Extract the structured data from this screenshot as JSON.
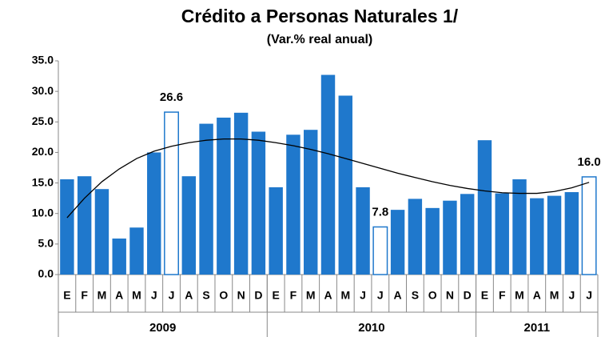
{
  "chart_data": {
    "type": "bar",
    "title": "Crédito a Personas Naturales 1/",
    "subtitle": "(Var.% real anual)",
    "groups": [
      {
        "name": "2009",
        "categories": [
          "E",
          "F",
          "M",
          "A",
          "M",
          "J",
          "J",
          "A",
          "S",
          "O",
          "N",
          "D"
        ]
      },
      {
        "name": "2010",
        "categories": [
          "E",
          "F",
          "M",
          "A",
          "M",
          "J",
          "J",
          "A",
          "S",
          "O",
          "N",
          "D"
        ]
      },
      {
        "name": "2011",
        "categories": [
          "E",
          "F",
          "M",
          "A",
          "M",
          "J",
          "J"
        ]
      }
    ],
    "values": [
      15.6,
      16.1,
      14.0,
      5.9,
      7.7,
      20.0,
      26.6,
      16.1,
      24.7,
      25.7,
      26.5,
      23.4,
      14.3,
      22.9,
      23.7,
      32.7,
      29.3,
      14.3,
      7.8,
      10.6,
      12.4,
      10.9,
      12.1,
      13.2,
      22.0,
      13.3,
      15.6,
      12.5,
      12.9,
      13.5,
      16.0
    ],
    "value_labels": [
      null,
      null,
      null,
      null,
      null,
      null,
      "26.6",
      null,
      null,
      null,
      null,
      null,
      null,
      null,
      null,
      null,
      null,
      null,
      "7.8",
      null,
      null,
      null,
      null,
      null,
      null,
      null,
      null,
      null,
      null,
      null,
      "16.0"
    ],
    "trend": [
      9.3,
      12.5,
      15.2,
      17.3,
      19.0,
      20.2,
      21.0,
      21.6,
      22.0,
      22.2,
      22.2,
      22.0,
      21.6,
      21.1,
      20.5,
      19.8,
      19.0,
      18.2,
      17.4,
      16.6,
      15.9,
      15.2,
      14.6,
      14.1,
      13.7,
      13.4,
      13.3,
      13.3,
      13.6,
      14.2,
      15.1
    ],
    "color": "#1f78cc",
    "trend_color": "#000000",
    "ylim": [
      0,
      35
    ],
    "yticks": [
      {
        "value": 0,
        "label": "0.0"
      },
      {
        "value": 5,
        "label": "5.0"
      },
      {
        "value": 10,
        "label": "10.0"
      },
      {
        "value": 15,
        "label": "15.0"
      },
      {
        "value": 20,
        "label": "20.0"
      },
      {
        "value": 25,
        "label": "25.0"
      },
      {
        "value": 30,
        "label": "30.0"
      },
      {
        "value": 35,
        "label": "35.0"
      }
    ],
    "grid": false
  }
}
